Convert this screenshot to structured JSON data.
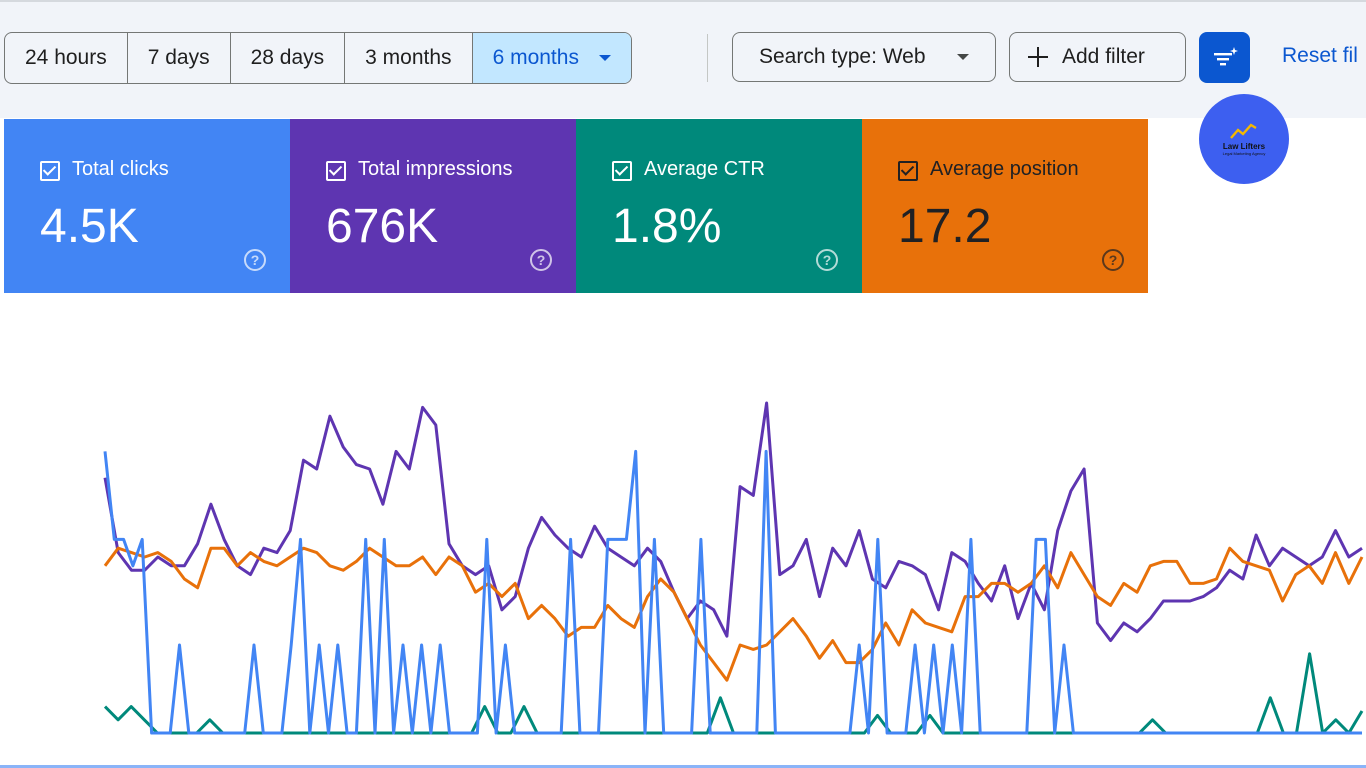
{
  "toolbar": {
    "ranges": [
      {
        "label": "24 hours"
      },
      {
        "label": "7 days"
      },
      {
        "label": "28 days"
      },
      {
        "label": "3 months"
      },
      {
        "label": "6 months",
        "selected": true
      }
    ],
    "search_type_label": "Search type: Web",
    "add_filter_label": "Add filter",
    "reset_label": "Reset fil",
    "icons": {
      "dropdown": "caret-down-icon",
      "add": "plus-icon",
      "filter": "filter-sparkle-icon"
    }
  },
  "logo": {
    "name": "Law Lifters",
    "tagline": "Legal Marketing Agency",
    "bg": "#3d5ff0"
  },
  "metrics": [
    {
      "label": "Total clicks",
      "value": "4.5K",
      "color": "#4285f4",
      "text_color": "#ffffff",
      "icon": "checkbox-checked-icon",
      "help_icon": "help-icon"
    },
    {
      "label": "Total impressions",
      "value": "676K",
      "color": "#5e35b1",
      "text_color": "#ffffff",
      "icon": "checkbox-checked-icon",
      "help_icon": "help-icon"
    },
    {
      "label": "Average CTR",
      "value": "1.8%",
      "color": "#00897b",
      "text_color": "#ffffff",
      "icon": "checkbox-checked-icon",
      "help_icon": "help-icon"
    },
    {
      "label": "Average position",
      "value": "17.2",
      "color": "#e8710a",
      "text_color": "#202124",
      "icon": "checkbox-checked-icon",
      "help_icon": "help-icon"
    }
  ],
  "chart_data": {
    "type": "line",
    "title": "",
    "xlabel": "",
    "ylabel": "",
    "grid": false,
    "legend": "none",
    "ylim": [
      0,
      100
    ],
    "series": [
      {
        "color": "#5e35b1",
        "values": [
          58,
          41,
          37,
          37,
          40,
          38,
          38,
          43,
          52,
          44,
          38,
          36,
          42,
          41,
          46,
          62,
          60,
          72,
          65,
          61,
          60,
          52,
          64,
          60,
          74,
          70,
          43,
          38,
          36,
          38,
          28,
          31,
          42,
          49,
          45,
          42,
          40,
          47,
          42,
          40,
          38,
          42,
          39,
          32,
          26,
          30,
          28,
          22,
          56,
          54,
          75,
          36,
          38,
          44,
          31,
          42,
          38,
          46,
          35,
          33,
          39,
          38,
          36,
          28,
          41,
          39,
          34,
          30,
          38,
          26,
          34,
          28,
          46,
          55,
          60,
          25,
          21,
          25,
          23,
          26,
          30,
          30,
          30,
          31,
          33,
          37,
          35,
          45,
          38,
          42,
          40,
          38,
          40,
          46,
          40,
          42
        ]
      },
      {
        "color": "#e8710a",
        "values": [
          38,
          42,
          41,
          40,
          41,
          39,
          35,
          33,
          42,
          42,
          38,
          41,
          39,
          38,
          40,
          42,
          41,
          38,
          37,
          39,
          42,
          40,
          38,
          38,
          40,
          36,
          40,
          38,
          32,
          34,
          31,
          34,
          26,
          29,
          26,
          22,
          24,
          24,
          29,
          26,
          24,
          31,
          35,
          32,
          26,
          20,
          16,
          12,
          20,
          19,
          20,
          23,
          26,
          22,
          17,
          21,
          16,
          16,
          19,
          25,
          20,
          28,
          25,
          24,
          23,
          31,
          31,
          34,
          34,
          32,
          34,
          38,
          33,
          41,
          36,
          31,
          29,
          34,
          32,
          38,
          39,
          39,
          34,
          34,
          35,
          42,
          39,
          38,
          37,
          30,
          36,
          38,
          34,
          41,
          34,
          40
        ]
      },
      {
        "color": "#00897b",
        "values": [
          6,
          3,
          6,
          3,
          0,
          0,
          0,
          0,
          3,
          0,
          0,
          0,
          0,
          0,
          0,
          0,
          0,
          0,
          0,
          0,
          0,
          0,
          0,
          0,
          0,
          0,
          0,
          0,
          0,
          6,
          0,
          0,
          6,
          0,
          0,
          0,
          0,
          0,
          0,
          0,
          0,
          0,
          0,
          0,
          0,
          0,
          0,
          8,
          0,
          0,
          0,
          0,
          0,
          0,
          0,
          0,
          0,
          0,
          0,
          4,
          0,
          0,
          0,
          4,
          0,
          0,
          0,
          0,
          0,
          0,
          0,
          0,
          0,
          0,
          0,
          0,
          0,
          0,
          0,
          0,
          3,
          0,
          0,
          0,
          0,
          0,
          0,
          0,
          0,
          8,
          0,
          0,
          18,
          0,
          3,
          0,
          5
        ]
      },
      {
        "color": "#4285f4",
        "values": [
          64,
          44,
          44,
          38,
          44,
          0,
          0,
          0,
          20,
          0,
          0,
          0,
          0,
          0,
          0,
          0,
          20,
          0,
          0,
          0,
          20,
          44,
          0,
          20,
          0,
          20,
          0,
          0,
          44,
          0,
          44,
          0,
          20,
          0,
          20,
          0,
          20,
          0,
          0,
          0,
          0,
          44,
          0,
          20,
          0,
          0,
          0,
          0,
          0,
          0,
          44,
          0,
          0,
          0,
          44,
          44,
          44,
          64,
          0,
          44,
          0,
          0,
          0,
          0,
          44,
          0,
          0,
          0,
          0,
          0,
          0,
          64,
          0,
          0,
          0,
          0,
          0,
          0,
          0,
          0,
          0,
          20,
          0,
          44,
          0,
          0,
          0,
          20,
          0,
          20,
          0,
          20,
          0,
          44,
          0,
          0,
          0,
          0,
          0,
          0,
          44,
          44,
          0,
          20,
          0,
          0,
          0,
          0,
          0,
          0,
          0,
          0,
          0,
          0,
          0,
          0,
          0,
          0,
          0,
          0,
          0,
          0,
          0,
          0,
          0,
          0,
          0,
          0,
          0,
          0,
          0,
          0,
          0,
          0,
          0,
          0
        ]
      }
    ]
  }
}
